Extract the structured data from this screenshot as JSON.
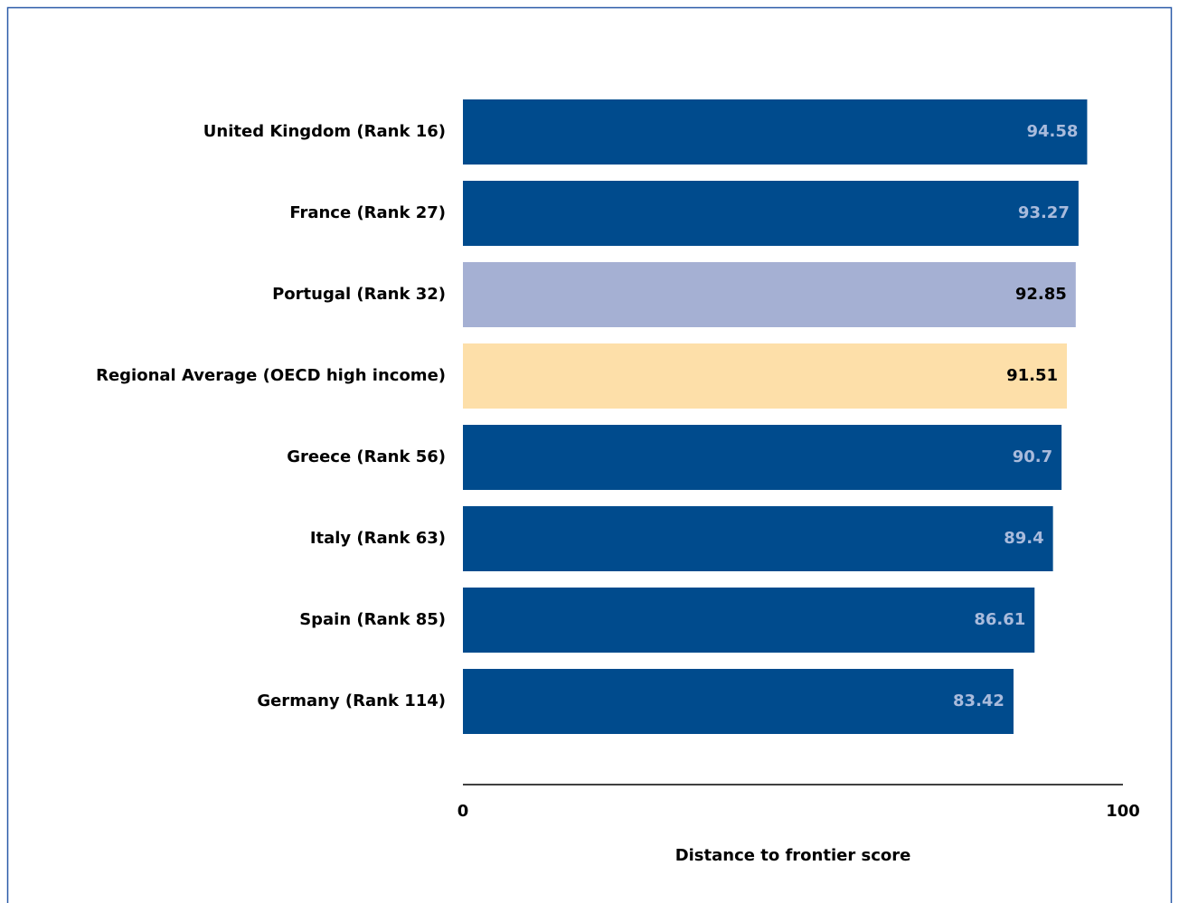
{
  "chart_data": {
    "type": "bar",
    "orientation": "horizontal",
    "categories": [
      "United Kingdom (Rank 16)",
      "France (Rank 27)",
      "Portugal (Rank 32)",
      "Regional Average (OECD high income)",
      "Greece (Rank 56)",
      "Italy (Rank 63)",
      "Spain (Rank 85)",
      "Germany (Rank 114)"
    ],
    "values": [
      94.58,
      93.27,
      92.85,
      91.51,
      90.7,
      89.4,
      86.61,
      83.42
    ],
    "colors": [
      "#004b8d",
      "#004b8d",
      "#a5b0d3",
      "#fddfa9",
      "#004b8d",
      "#004b8d",
      "#004b8d",
      "#004b8d"
    ],
    "value_label_colors": [
      "#a9bbdc",
      "#a9bbdc",
      "#000000",
      "#000000",
      "#a9bbdc",
      "#a9bbdc",
      "#a9bbdc",
      "#a9bbdc"
    ],
    "xlabel": "Distance to frontier score",
    "xlim": [
      0,
      100
    ],
    "xticks": [
      0,
      100
    ],
    "grid": false
  }
}
